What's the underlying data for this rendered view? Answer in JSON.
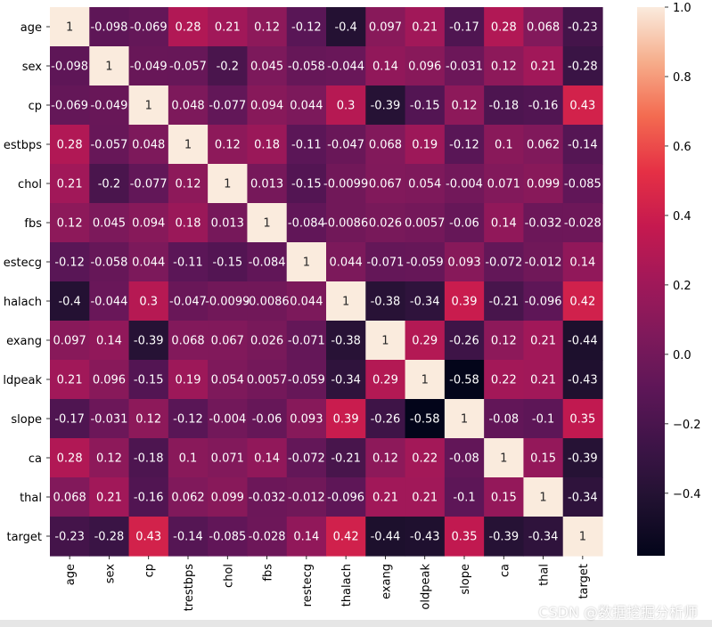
{
  "chart_data": {
    "type": "heatmap",
    "title": "",
    "labels": [
      "age",
      "sex",
      "cp",
      "trestbps",
      "chol",
      "fbs",
      "restecg",
      "thalach",
      "exang",
      "oldpeak",
      "slope",
      "ca",
      "thal",
      "target"
    ],
    "ytick_labels": [
      "age",
      "sex",
      "cp",
      "estbps",
      "chol",
      "fbs",
      "estecg",
      "halach",
      "exang",
      "ldpeak",
      "slope",
      "ca",
      "thal",
      "target"
    ],
    "values": [
      [
        1,
        -0.098,
        -0.069,
        0.28,
        0.21,
        0.12,
        -0.12,
        -0.4,
        0.097,
        0.21,
        -0.17,
        0.28,
        0.068,
        -0.23
      ],
      [
        -0.098,
        1,
        -0.049,
        -0.057,
        -0.2,
        0.045,
        -0.058,
        -0.044,
        0.14,
        0.096,
        -0.031,
        0.12,
        0.21,
        -0.28
      ],
      [
        -0.069,
        -0.049,
        1,
        0.048,
        -0.077,
        0.094,
        0.044,
        0.3,
        -0.39,
        -0.15,
        0.12,
        -0.18,
        -0.16,
        0.43
      ],
      [
        0.28,
        -0.057,
        0.048,
        1,
        0.12,
        0.18,
        -0.11,
        -0.047,
        0.068,
        0.19,
        -0.12,
        0.1,
        0.062,
        -0.14
      ],
      [
        0.21,
        -0.2,
        -0.077,
        0.12,
        1,
        0.013,
        -0.15,
        -0.0099,
        0.067,
        0.054,
        -0.004,
        0.071,
        0.099,
        -0.085
      ],
      [
        0.12,
        0.045,
        0.094,
        0.18,
        0.013,
        1,
        -0.084,
        -0.0086,
        0.026,
        0.0057,
        -0.06,
        0.14,
        -0.032,
        -0.028
      ],
      [
        -0.12,
        -0.058,
        0.044,
        -0.11,
        -0.15,
        -0.084,
        1,
        0.044,
        -0.071,
        -0.059,
        0.093,
        -0.072,
        -0.012,
        0.14
      ],
      [
        -0.4,
        -0.044,
        0.3,
        -0.047,
        -0.0099,
        -0.0086,
        0.044,
        1,
        -0.38,
        -0.34,
        0.39,
        -0.21,
        -0.096,
        0.42
      ],
      [
        0.097,
        0.14,
        -0.39,
        0.068,
        0.067,
        0.026,
        -0.071,
        -0.38,
        1,
        0.29,
        -0.26,
        0.12,
        0.21,
        -0.44
      ],
      [
        0.21,
        0.096,
        -0.15,
        0.19,
        0.054,
        0.0057,
        -0.059,
        -0.34,
        0.29,
        1,
        -0.58,
        0.22,
        0.21,
        -0.43
      ],
      [
        -0.17,
        -0.031,
        0.12,
        -0.12,
        -0.004,
        -0.06,
        0.093,
        0.39,
        -0.26,
        -0.58,
        1,
        -0.08,
        -0.1,
        0.35
      ],
      [
        0.28,
        0.12,
        -0.18,
        0.1,
        0.071,
        0.14,
        -0.072,
        -0.21,
        0.12,
        0.22,
        -0.08,
        1,
        0.15,
        -0.39
      ],
      [
        0.068,
        0.21,
        -0.16,
        0.062,
        0.099,
        -0.032,
        -0.012,
        -0.096,
        0.21,
        0.21,
        -0.1,
        0.15,
        1,
        -0.34
      ],
      [
        -0.23,
        -0.28,
        0.43,
        -0.14,
        -0.085,
        -0.028,
        0.14,
        0.42,
        -0.44,
        -0.43,
        0.35,
        -0.39,
        -0.34,
        1
      ]
    ],
    "value_labels": [
      [
        "1",
        "-0.098",
        "-0.069",
        "0.28",
        "0.21",
        "0.12",
        "-0.12",
        "-0.4",
        "0.097",
        "0.21",
        "-0.17",
        "0.28",
        "0.068",
        "-0.23"
      ],
      [
        "-0.098",
        "1",
        "-0.049",
        "-0.057",
        "-0.2",
        "0.045",
        "-0.058",
        "-0.044",
        "0.14",
        "0.096",
        "-0.031",
        "0.12",
        "0.21",
        "-0.28"
      ],
      [
        "-0.069",
        "-0.049",
        "1",
        "0.048",
        "-0.077",
        "0.094",
        "0.044",
        "0.3",
        "-0.39",
        "-0.15",
        "0.12",
        "-0.18",
        "-0.16",
        "0.43"
      ],
      [
        "0.28",
        "-0.057",
        "0.048",
        "1",
        "0.12",
        "0.18",
        "-0.11",
        "-0.047",
        "0.068",
        "0.19",
        "-0.12",
        "0.1",
        "0.062",
        "-0.14"
      ],
      [
        "0.21",
        "-0.2",
        "-0.077",
        "0.12",
        "1",
        "0.013",
        "-0.15",
        "-0.0099",
        "0.067",
        "0.054",
        "-0.004",
        "0.071",
        "0.099",
        "-0.085"
      ],
      [
        "0.12",
        "0.045",
        "0.094",
        "0.18",
        "0.013",
        "1",
        "-0.084",
        "-0.0086",
        "0.026",
        "0.0057",
        "-0.06",
        "0.14",
        "-0.032",
        "-0.028"
      ],
      [
        "-0.12",
        "-0.058",
        "0.044",
        "-0.11",
        "-0.15",
        "-0.084",
        "1",
        "0.044",
        "-0.071",
        "-0.059",
        "0.093",
        "-0.072",
        "-0.012",
        "0.14"
      ],
      [
        "-0.4",
        "-0.044",
        "0.3",
        "-0.047",
        "-0.0099",
        "-0.0086",
        "0.044",
        "1",
        "-0.38",
        "-0.34",
        "0.39",
        "-0.21",
        "-0.096",
        "0.42"
      ],
      [
        "0.097",
        "0.14",
        "-0.39",
        "0.068",
        "0.067",
        "0.026",
        "-0.071",
        "-0.38",
        "1",
        "0.29",
        "-0.26",
        "0.12",
        "0.21",
        "-0.44"
      ],
      [
        "0.21",
        "0.096",
        "-0.15",
        "0.19",
        "0.054",
        "0.0057",
        "-0.059",
        "-0.34",
        "0.29",
        "1",
        "-0.58",
        "0.22",
        "0.21",
        "-0.43"
      ],
      [
        "-0.17",
        "-0.031",
        "0.12",
        "-0.12",
        "-0.004",
        "-0.06",
        "0.093",
        "0.39",
        "-0.26",
        "-0.58",
        "1",
        "-0.08",
        "-0.1",
        "0.35"
      ],
      [
        "0.28",
        "0.12",
        "-0.18",
        "0.1",
        "0.071",
        "0.14",
        "-0.072",
        "-0.21",
        "0.12",
        "0.22",
        "-0.08",
        "1",
        "0.15",
        "-0.39"
      ],
      [
        "0.068",
        "0.21",
        "-0.16",
        "0.062",
        "0.099",
        "-0.032",
        "-0.012",
        "-0.096",
        "0.21",
        "0.21",
        "-0.1",
        "0.15",
        "1",
        "-0.34"
      ],
      [
        "-0.23",
        "-0.28",
        "0.43",
        "-0.14",
        "-0.085",
        "-0.028",
        "0.14",
        "0.42",
        "-0.44",
        "-0.43",
        "0.35",
        "-0.39",
        "-0.34",
        "1"
      ]
    ],
    "colorbar": {
      "colormap": "rocket",
      "range": [
        -0.58,
        1.0
      ],
      "ticks": [
        1.0,
        0.8,
        0.6,
        0.4,
        0.2,
        0.0,
        -0.2,
        -0.4
      ],
      "tick_labels": [
        "1.0",
        "0.8",
        "0.6",
        "0.4",
        "0.2",
        "0.0",
        "−0.2",
        "−0.4"
      ]
    }
  },
  "watermark": "CSDN @数据挖掘分析师"
}
